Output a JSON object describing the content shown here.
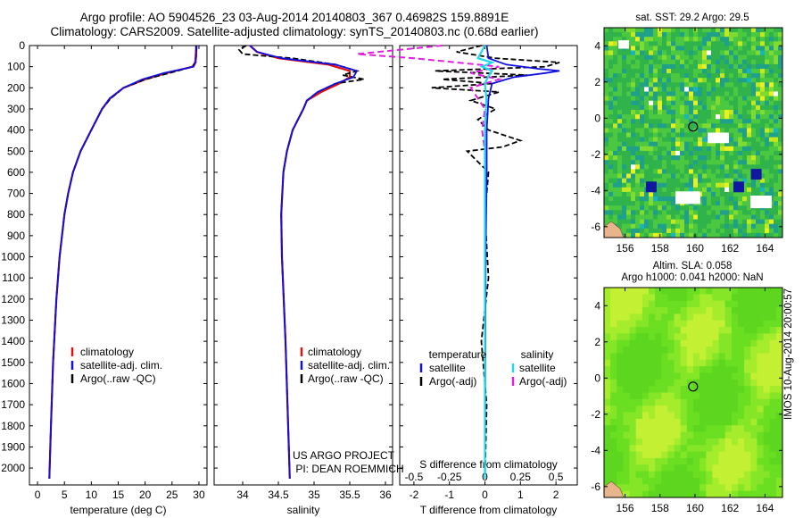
{
  "header": {
    "line1": "Argo profile: AO 5904526_23 03-Aug-2014 20140803_367 0.46982S 159.8891E",
    "line2": "Climatology: CARS2009. Satellite-adjusted climatology: synTS_20140803.nc (0.68d earlier)"
  },
  "colors": {
    "climatology": "#e01010",
    "satellite": "#1010e0",
    "argo": "#000000",
    "sal_satellite": "#20d8e8",
    "sal_argo": "#e020e0"
  },
  "footer": {
    "project_line1": "US ARGO PROJECT",
    "project_line2": "PI: DEAN ROEMMICH",
    "stamp": "IMOS 10-Aug-2014 20:00:57"
  },
  "chart_data": [
    {
      "type": "line",
      "title": "",
      "xlabel": "temperature (deg C)",
      "ylabel": "",
      "xlim": [
        -1.5,
        31.5
      ],
      "ylim": [
        2080,
        0
      ],
      "xticks": [
        "0",
        "5",
        "10",
        "15",
        "20",
        "25",
        "30"
      ],
      "yticks": [
        "0",
        "100",
        "200",
        "300",
        "400",
        "500",
        "600",
        "700",
        "800",
        "900",
        "1000",
        "1100",
        "1200",
        "1300",
        "1400",
        "1500",
        "1600",
        "1700",
        "1800",
        "1900",
        "2000"
      ],
      "legend": [
        "climatology",
        "satellite-adj. clim.",
        "Argo(..raw -QC)"
      ],
      "series": [
        {
          "name": "climatology",
          "depth": [
            0,
            50,
            80,
            100,
            130,
            160,
            200,
            250,
            300,
            400,
            500,
            600,
            700,
            800,
            1000,
            1200,
            1500,
            1800,
            2050
          ],
          "values": [
            29.5,
            29.4,
            29.3,
            28.8,
            24,
            20,
            16,
            13.5,
            12,
            10,
            8,
            6.6,
            5.7,
            5,
            4.1,
            3.5,
            2.9,
            2.5,
            2.2
          ]
        },
        {
          "name": "satellite-adj. clim.",
          "depth": [
            0,
            50,
            80,
            100,
            130,
            160,
            200,
            250,
            300,
            400,
            500,
            600,
            700,
            800,
            1000,
            1200,
            1500,
            1800,
            2050
          ],
          "values": [
            29.6,
            29.5,
            29.4,
            29,
            23.5,
            19.5,
            16,
            13.4,
            12,
            10,
            8,
            6.6,
            5.7,
            5,
            4.1,
            3.5,
            2.9,
            2.5,
            2.2
          ]
        },
        {
          "name": "Argo(..raw -QC)",
          "depth": [
            0,
            50,
            80,
            100,
            130,
            160,
            200,
            250,
            300,
            400,
            500,
            600,
            700,
            800,
            1000,
            1200,
            1500,
            1800,
            2050
          ],
          "values": [
            29.5,
            29.5,
            29.4,
            28.8,
            24.5,
            20,
            16,
            13.6,
            12,
            10,
            8,
            6.6,
            5.7,
            5,
            4.1,
            3.5,
            2.9,
            2.5,
            2.2
          ]
        }
      ]
    },
    {
      "type": "line",
      "xlabel": "salinity",
      "xlim": [
        33.6,
        36.1
      ],
      "ylim": [
        2080,
        0
      ],
      "xticks": [
        "34",
        "34.5",
        "35",
        "35.5",
        "36"
      ],
      "legend": [
        "climatology",
        "satellite-adj. clim.",
        "Argo(..raw -QC)"
      ],
      "series": [
        {
          "name": "climatology",
          "depth": [
            0,
            30,
            60,
            90,
            120,
            150,
            180,
            220,
            260,
            300,
            400,
            500,
            600,
            800,
            1000,
            1400,
            2050
          ],
          "values": [
            34.1,
            34.2,
            34.5,
            35.2,
            35.5,
            35.5,
            35.35,
            35.1,
            34.9,
            34.85,
            34.7,
            34.62,
            34.57,
            34.54,
            34.55,
            34.6,
            34.66
          ]
        },
        {
          "name": "satellite-adj. clim.",
          "depth": [
            0,
            30,
            60,
            90,
            120,
            150,
            180,
            220,
            260,
            300,
            400,
            500,
            600,
            800,
            1000,
            1400,
            2050
          ],
          "values": [
            34.1,
            34.2,
            34.55,
            35.3,
            35.6,
            35.55,
            35.3,
            35.05,
            34.9,
            34.85,
            34.7,
            34.62,
            34.57,
            34.54,
            34.55,
            34.6,
            34.66
          ]
        },
        {
          "name": "Argo(..raw -QC)",
          "depth": [
            0,
            20,
            40,
            60,
            90,
            120,
            140,
            160,
            180,
            220,
            260,
            300,
            400,
            500,
            600,
            800,
            1000,
            1400,
            2050
          ],
          "values": [
            34.05,
            33.95,
            34.0,
            34.7,
            35.3,
            35.6,
            35.4,
            35.7,
            35.3,
            35.05,
            34.9,
            34.85,
            34.7,
            34.62,
            34.57,
            34.54,
            34.55,
            34.6,
            34.66
          ]
        }
      ]
    },
    {
      "type": "line",
      "xlabel": "T difference from climatology",
      "top_label": "S difference from climatology",
      "xlim": [
        -2.4,
        2.6
      ],
      "ylim": [
        2080,
        0
      ],
      "xticks": [
        "-2",
        "-1",
        "0",
        "1",
        "2"
      ],
      "top_ticks": [
        "-0.5",
        "-0.25",
        "0",
        "0.25",
        "0.5"
      ],
      "legend_temperature_title": "temperature",
      "legend_salinity_title": "salinity",
      "legend_temperature": [
        "satellite",
        "Argo(-adj)"
      ],
      "legend_salinity": [
        "satellite",
        "Argo(-adj)"
      ],
      "series": [
        {
          "name": "T satellite",
          "depth": [
            0,
            60,
            90,
            110,
            120,
            130,
            150,
            180,
            250,
            400,
            600,
            1000,
            2050
          ],
          "values": [
            0.05,
            0.1,
            0.6,
            1.5,
            2.1,
            1.7,
            0.8,
            0.2,
            0.1,
            0.05,
            0.05,
            0.02,
            0.0
          ]
        },
        {
          "name": "T Argo(-adj)",
          "depth": [
            0,
            30,
            60,
            80,
            100,
            120,
            140,
            160,
            180,
            200,
            220,
            260,
            300,
            350,
            400,
            450,
            480,
            500,
            550,
            600,
            800,
            1100,
            1400,
            1700,
            2050
          ],
          "values": [
            -0.1,
            -0.8,
            0.3,
            2.1,
            1.7,
            -1.4,
            1.2,
            -1.2,
            0.2,
            -1.5,
            0.4,
            -0.4,
            0.3,
            -0.2,
            0.1,
            1.0,
            0.5,
            -0.5,
            -0.2,
            0.1,
            0.0,
            0.1,
            -0.1,
            0.05,
            0.0
          ]
        },
        {
          "name": "S satellite",
          "depth": [
            0,
            60,
            80,
            100,
            120,
            150,
            180,
            250,
            400,
            600,
            1000,
            2050
          ],
          "values": [
            0.0,
            -0.05,
            0.05,
            -0.02,
            0.05,
            0.02,
            0.0,
            0.01,
            0.0,
            0.0,
            0.0,
            0.0
          ]
        },
        {
          "name": "S Argo(-adj)",
          "depth": [
            0,
            40,
            60,
            80,
            100,
            130,
            160,
            200,
            250,
            300,
            400,
            500,
            600,
            1000,
            2050
          ],
          "values": [
            -0.3,
            -0.9,
            -0.5,
            -0.2,
            0.1,
            -0.1,
            0.1,
            -0.1,
            -0.05,
            0.0,
            -0.02,
            0.0,
            0.0,
            0.0,
            0.0
          ]
        }
      ]
    },
    {
      "type": "heatmap",
      "title": "sat. SST: 29.2  Argo: 29.5",
      "xlim": [
        154.8,
        165.0
      ],
      "ylim": [
        -6.6,
        5.0
      ],
      "xticks": [
        "156",
        "158",
        "160",
        "162",
        "164"
      ],
      "yticks": [
        "4",
        "2",
        "0",
        "-2",
        "-4",
        "-6"
      ],
      "marker": {
        "lon": 159.89,
        "lat": -0.47
      }
    },
    {
      "type": "heatmap",
      "title_line1": "Altim. SLA: 0.058",
      "title_line2": "Argo h1000: 0.041  h2000: NaN",
      "xlim": [
        154.8,
        165.0
      ],
      "ylim": [
        -6.6,
        5.0
      ],
      "xticks": [
        "156",
        "158",
        "160",
        "162",
        "164"
      ],
      "yticks": [
        "4",
        "2",
        "0",
        "-2",
        "-4",
        "-6"
      ],
      "marker": {
        "lon": 159.89,
        "lat": -0.47
      }
    }
  ]
}
